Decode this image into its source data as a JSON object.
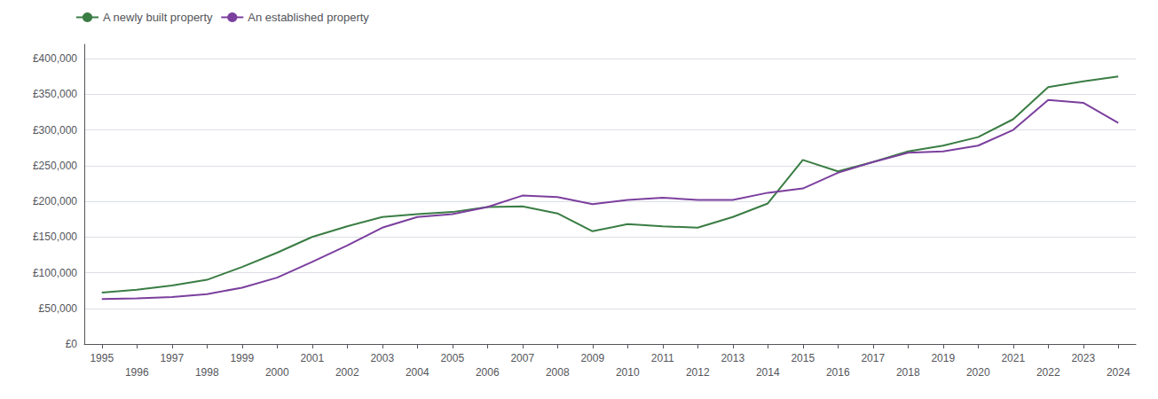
{
  "chart_data": {
    "type": "line",
    "x": [
      1995,
      1996,
      1997,
      1998,
      1999,
      2000,
      2001,
      2002,
      2003,
      2004,
      2005,
      2006,
      2007,
      2008,
      2009,
      2010,
      2011,
      2012,
      2013,
      2014,
      2015,
      2016,
      2017,
      2018,
      2019,
      2020,
      2021,
      2022,
      2023,
      2024
    ],
    "series": [
      {
        "name": "A newly built property",
        "color": "#3a7d44",
        "values": [
          72000,
          76000,
          82000,
          90000,
          108000,
          128000,
          150000,
          165000,
          178000,
          182000,
          185000,
          192000,
          193000,
          183000,
          158000,
          168000,
          165000,
          163000,
          178000,
          197000,
          258000,
          242000,
          255000,
          270000,
          278000,
          290000,
          315000,
          360000,
          368000,
          375000
        ]
      },
      {
        "name": "An established property",
        "color": "#7b3f9e",
        "values": [
          63000,
          64000,
          66000,
          70000,
          79000,
          93000,
          115000,
          138000,
          163000,
          178000,
          182000,
          192000,
          208000,
          206000,
          196000,
          202000,
          205000,
          202000,
          202000,
          212000,
          218000,
          240000,
          255000,
          268000,
          270000,
          278000,
          300000,
          342000,
          338000,
          310000
        ]
      }
    ],
    "xlim": [
      1994.5,
      2024.5
    ],
    "xticks": [
      1995,
      1996,
      1997,
      1998,
      1999,
      2000,
      2001,
      2002,
      2003,
      2004,
      2005,
      2006,
      2007,
      2008,
      2009,
      2010,
      2011,
      2012,
      2013,
      2014,
      2015,
      2016,
      2017,
      2018,
      2019,
      2020,
      2021,
      2022,
      2023,
      2024
    ],
    "ylim": [
      0,
      420000
    ],
    "yticks": [
      {
        "value": 0,
        "label": "£0"
      },
      {
        "value": 50000,
        "label": "£50,000"
      },
      {
        "value": 100000,
        "label": "£100,000"
      },
      {
        "value": 150000,
        "label": "£150,000"
      },
      {
        "value": 200000,
        "label": "£200,000"
      },
      {
        "value": 250000,
        "label": "£250,000"
      },
      {
        "value": 300000,
        "label": "£300,000"
      },
      {
        "value": 350000,
        "label": "£350,000"
      },
      {
        "value": 400000,
        "label": "£400,000"
      }
    ],
    "grid": true,
    "legend": "upper left"
  }
}
